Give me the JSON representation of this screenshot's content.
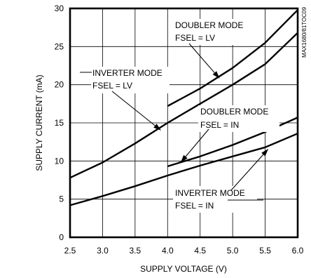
{
  "chart_data": {
    "type": "line",
    "xlabel": "SUPPLY VOLTAGE (V)",
    "ylabel": "SUPPLY CURRENT (mA)",
    "xlim": [
      2.5,
      6.0
    ],
    "ylim": [
      0,
      30
    ],
    "x_ticks": [
      "2.5",
      "3.0",
      "3.5",
      "4.0",
      "4.5",
      "5.0",
      "5.5",
      "6.0"
    ],
    "y_ticks": [
      "0",
      "5",
      "10",
      "15",
      "20",
      "25",
      "30"
    ],
    "grid": true,
    "legend": "none",
    "watermark": "MAX1680/81TOC09",
    "series": [
      {
        "name": "DOUBLER MODE FSEL = LV",
        "x": [
          4.0,
          4.5,
          5.0,
          5.5,
          6.0
        ],
        "y": [
          17.2,
          19.5,
          22.2,
          25.5,
          29.8
        ]
      },
      {
        "name": "INVERTER MODE FSEL = LV",
        "x": [
          2.5,
          3.0,
          3.5,
          4.0,
          4.5,
          5.0,
          5.5,
          6.0
        ],
        "y": [
          7.8,
          9.8,
          12.3,
          15.0,
          17.5,
          20.0,
          22.7,
          26.8
        ]
      },
      {
        "name": "DOUBLER MODE FSEL = IN",
        "x": [
          4.0,
          4.5,
          5.0,
          5.5,
          6.0
        ],
        "y": [
          9.3,
          10.6,
          12.1,
          13.8,
          15.7
        ]
      },
      {
        "name": "INVERTER MODE FSEL = IN",
        "x": [
          2.5,
          3.0,
          3.5,
          4.0,
          4.5,
          5.0,
          5.5,
          6.0
        ],
        "y": [
          4.2,
          5.4,
          6.7,
          8.1,
          9.4,
          10.6,
          11.8,
          13.6
        ]
      }
    ],
    "annotations": [
      {
        "id": "doubler-lv",
        "lines": [
          "DOUBLER MODE",
          "FSEL = LV"
        ],
        "arrow_to": [
          4.8,
          20.8
        ]
      },
      {
        "id": "inverter-lv",
        "lines": [
          "INVERTER MODE",
          "FSEL = LV"
        ],
        "arrow_to": [
          3.9,
          14.0
        ]
      },
      {
        "id": "doubler-in",
        "lines": [
          "DOUBLER MODE",
          "FSEL = IN"
        ],
        "arrow_to": [
          4.2,
          9.8
        ]
      },
      {
        "id": "inverter-in",
        "lines": [
          "INVERTER MODE",
          "FSEL = IN"
        ],
        "arrow_to": [
          5.55,
          11.6
        ]
      }
    ]
  }
}
